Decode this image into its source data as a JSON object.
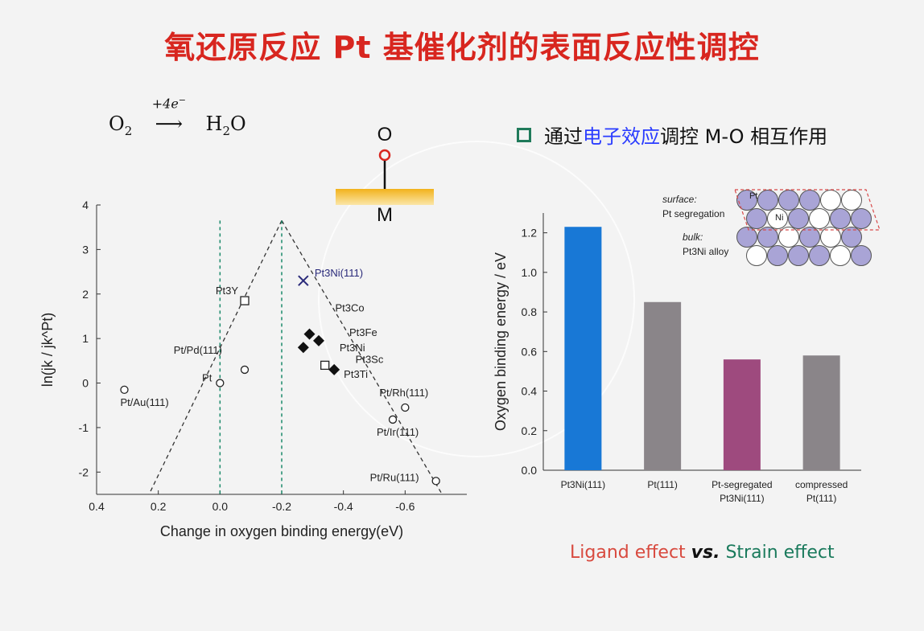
{
  "title": "氧还原反应 Pt 基催化剂的表面反应性调控",
  "reaction": {
    "reactant": "O",
    "reactant_sub": "2",
    "arrow_label": "+4e",
    "arrow_sup": "−",
    "product": "H",
    "product_sub": "2",
    "product_tail": "O"
  },
  "bullet": {
    "prefix": "通过",
    "highlight": "电子效应",
    "suffix": "调控 M-O 相互作用"
  },
  "adsorbate": {
    "top": "O",
    "bottom": "M"
  },
  "colors": {
    "title": "#d8261f",
    "blue_bar": "#1878d6",
    "gray_bar": "#8a8589",
    "magenta_bar": "#9e4a7e",
    "ligand": "#d84a3f",
    "strain": "#1a7a5c"
  },
  "chart_data": [
    {
      "type": "scatter",
      "xlabel": "Change in oxygen binding energy(eV)",
      "ylabel": "ln(jk / jk^Pt)",
      "xlim": [
        0.4,
        -0.8
      ],
      "ylim": [
        -2.5,
        4
      ],
      "xticks": [
        "0.4",
        "0.2",
        "0.0",
        "-0.2",
        "-0.4",
        "-0.6"
      ],
      "yticks": [
        "4",
        "3",
        "2",
        "1",
        "0",
        "-1",
        "-2"
      ],
      "points": [
        {
          "label": "Pt/Au(111)",
          "x": 0.31,
          "y": -0.15,
          "marker": "circle"
        },
        {
          "label": "Pt/Pd(111)",
          "x": -0.08,
          "y": 0.3,
          "marker": "circle"
        },
        {
          "label": "Pt",
          "x": 0.0,
          "y": 0.0,
          "marker": "circle"
        },
        {
          "label": "Pt3Y",
          "x": -0.08,
          "y": 1.85,
          "marker": "square"
        },
        {
          "label": "Pt3Ni(111)",
          "x": -0.27,
          "y": 2.3,
          "marker": "x"
        },
        {
          "label": "Pt3Co",
          "x": -0.29,
          "y": 1.1,
          "marker": "diamond"
        },
        {
          "label": "Pt3Fe",
          "x": -0.32,
          "y": 0.95,
          "marker": "diamond"
        },
        {
          "label": "Pt3Ni",
          "x": -0.27,
          "y": 0.8,
          "marker": "diamond"
        },
        {
          "label": "Pt3Sc",
          "x": -0.34,
          "y": 0.4,
          "marker": "square"
        },
        {
          "label": "Pt3Ti",
          "x": -0.37,
          "y": 0.3,
          "marker": "diamond"
        },
        {
          "label": "Pt/Rh(111)",
          "x": -0.6,
          "y": -0.55,
          "marker": "circle"
        },
        {
          "label": "Pt/Ir(111)",
          "x": -0.56,
          "y": -0.82,
          "marker": "circle"
        },
        {
          "label": "Pt/Ru(111)",
          "x": -0.7,
          "y": -2.2,
          "marker": "circle"
        }
      ],
      "volcano_apex": {
        "x": -0.2,
        "y": 3.65
      },
      "dashed_verticals": [
        0.0,
        -0.2
      ]
    },
    {
      "type": "bar",
      "ylabel": "Oxygen binding energy / eV",
      "ylim": [
        0,
        1.3
      ],
      "yticks": [
        "0.0",
        "0.2",
        "0.4",
        "0.6",
        "0.8",
        "1.0",
        "1.2"
      ],
      "categories": [
        "Pt3Ni(111)",
        "Pt(111)",
        "Pt-segregated Pt3Ni(111)",
        "compressed Pt(111)"
      ],
      "values": [
        1.23,
        0.85,
        0.56,
        0.58
      ],
      "bar_colors": [
        "#1878d6",
        "#8a8589",
        "#9e4a7e",
        "#8a8589"
      ]
    }
  ],
  "inset": {
    "surface_label": "surface:",
    "surface_desc": "Pt segregation",
    "bulk_label": "bulk:",
    "bulk_desc": "Pt3Ni alloy",
    "atom_pt": "Pt",
    "atom_ni": "Ni"
  },
  "effects": {
    "ligand": "Ligand effect",
    "vs": "vs.",
    "strain": "Strain effect"
  }
}
